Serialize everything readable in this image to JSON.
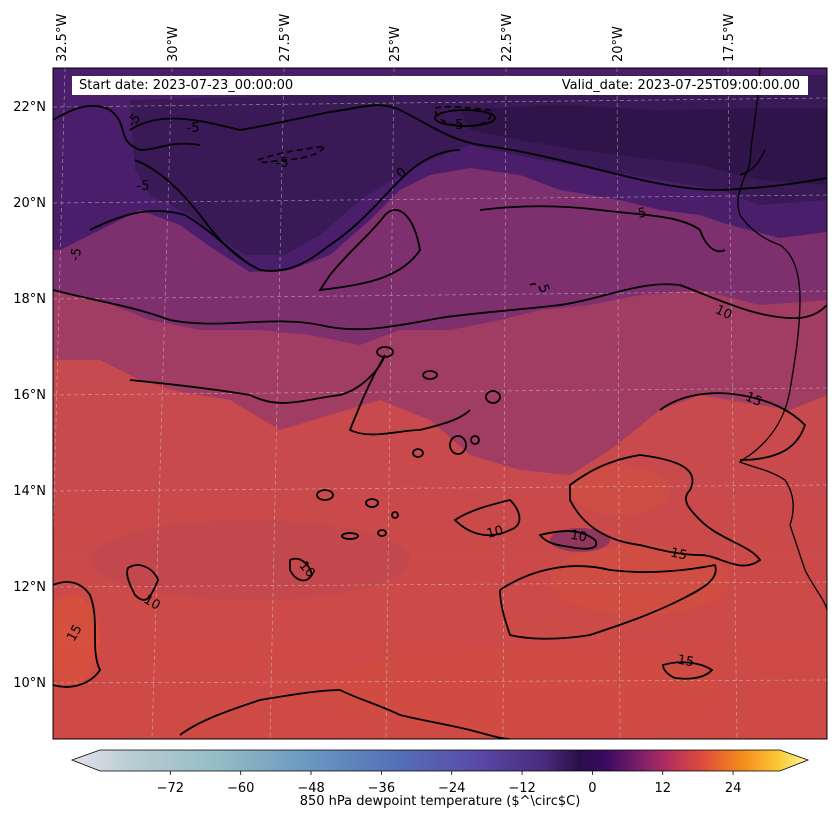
{
  "header": {
    "start_date": "Start date: 2023-07-23_00:00:00",
    "valid_date": "Valid_date: 2023-07-25T09:00:00.00"
  },
  "axes": {
    "lon_labels": [
      "32.5°W",
      "30°W",
      "27.5°W",
      "25°W",
      "22.5°W",
      "20°W",
      "17.5°W"
    ],
    "lat_labels": [
      "22°N",
      "20°N",
      "18°N",
      "16°N",
      "14°N",
      "12°N",
      "10°N"
    ]
  },
  "contour_labels": [
    "-5",
    "-5",
    "-5",
    "-5",
    "-5",
    "-5",
    "0",
    "5",
    "5",
    "10",
    "10",
    "10",
    "10",
    "10",
    "15",
    "15",
    "15",
    "15"
  ],
  "colorbar": {
    "label": "850 hPa dewpoint temperature ($^\\circ$C)",
    "ticks": [
      "−72",
      "−60",
      "−48",
      "−36",
      "−24",
      "−12",
      "0",
      "12",
      "24"
    ],
    "tick_values": [
      -72,
      -60,
      -48,
      -36,
      -24,
      -12,
      0,
      12,
      24
    ],
    "range": [
      -84,
      32
    ]
  },
  "colors": {
    "dry": "#3a1a56",
    "moist": "#c84848",
    "contour": "#000000"
  }
}
